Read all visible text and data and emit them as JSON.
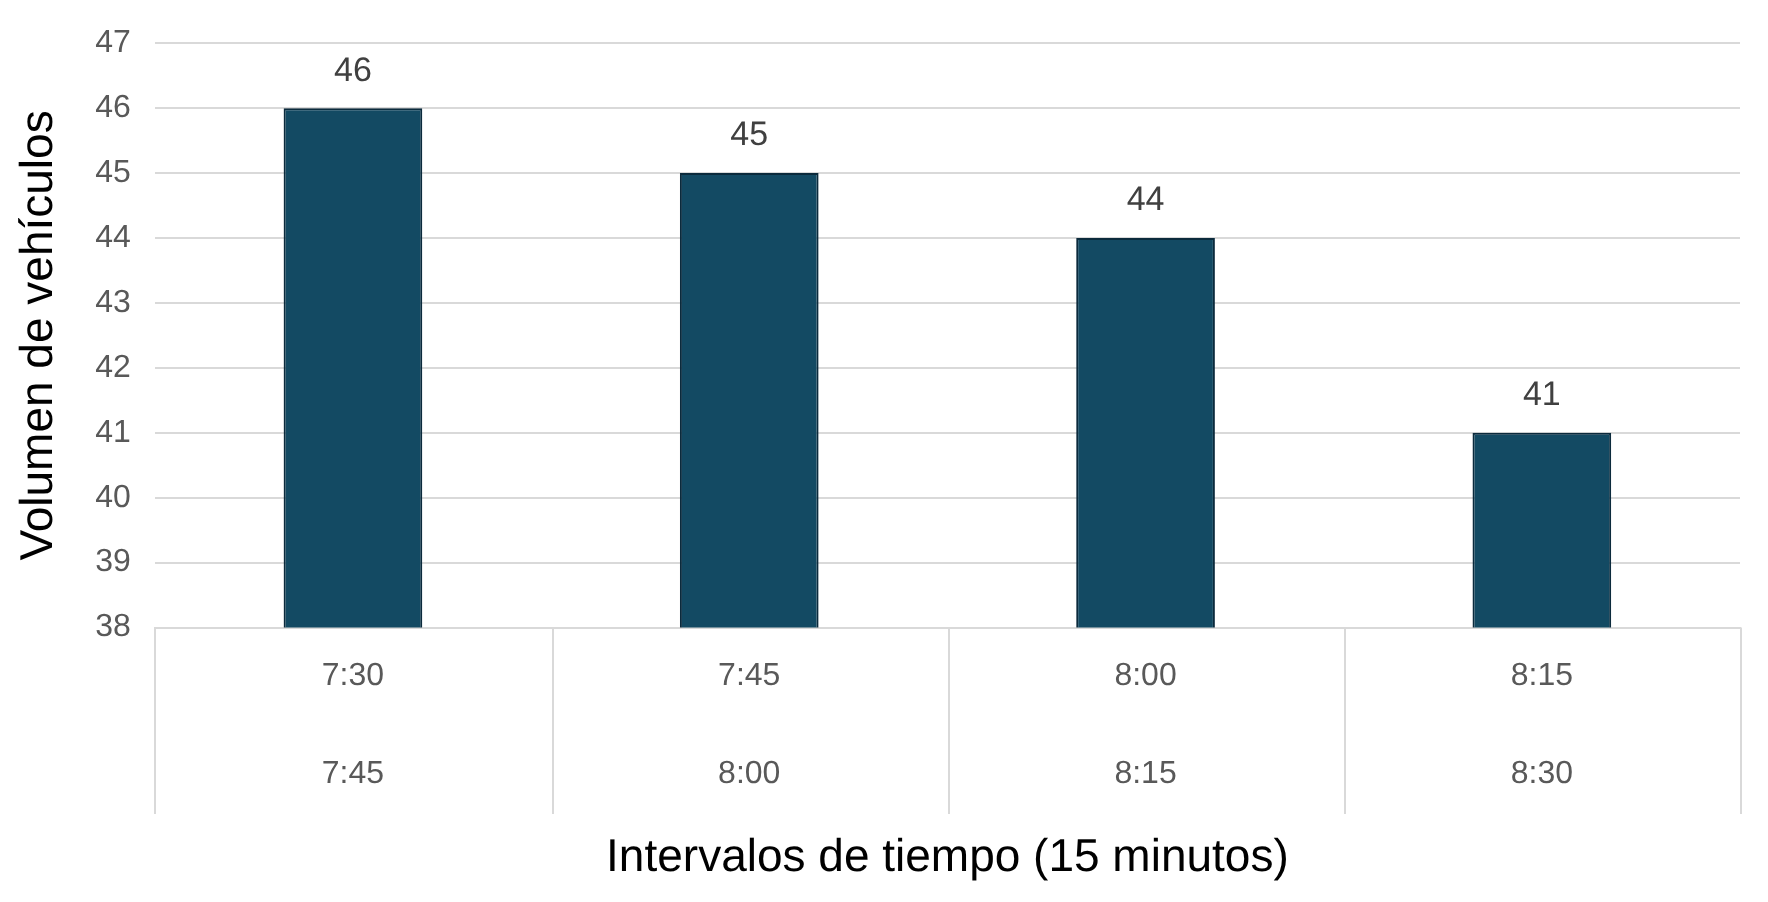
{
  "chart_data": {
    "type": "bar",
    "xlabel": "Intervalos de tiempo (15 minutos)",
    "ylabel": "Volumen de vehículos",
    "categories": [
      "7:30\n7:45",
      "7:45\n8:00",
      "8:00\n8:15",
      "8:15\n8:30"
    ],
    "values": [
      46,
      45,
      44,
      41
    ],
    "color": "#134a63",
    "ylim": [
      38,
      47
    ],
    "yticks": [
      38,
      39,
      40,
      41,
      42,
      43,
      44,
      45,
      46,
      47
    ],
    "grid": "y",
    "data_labels": true
  }
}
